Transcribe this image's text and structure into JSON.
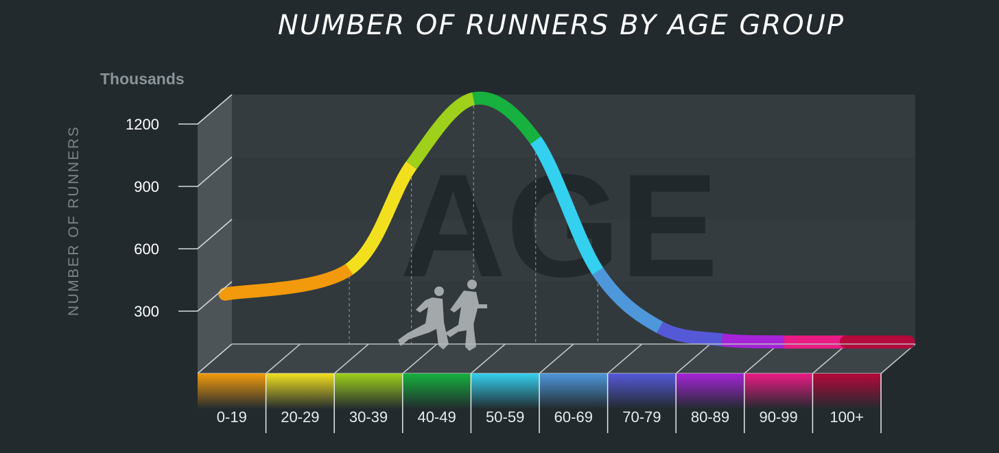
{
  "chart_data": {
    "type": "line",
    "title": "NUMBER OF RUNNERS BY AGE GROUP",
    "ylabel": "NUMBER OF RUNNERS",
    "yunits": "Thousands",
    "ylim": [
      0,
      1200
    ],
    "yticks": [
      300,
      600,
      900,
      1200
    ],
    "watermark": "AGE",
    "categories": [
      "0-19",
      "20-29",
      "30-39",
      "40-49",
      "50-59",
      "60-69",
      "70-79",
      "80-89",
      "90-99",
      "100+"
    ],
    "colors": [
      "#f29a0c",
      "#f2e01f",
      "#9fd01b",
      "#16b13e",
      "#34d0ef",
      "#4e97db",
      "#5559d8",
      "#a524d8",
      "#eb1b84",
      "#b4093a"
    ],
    "series": [
      {
        "x": [
          0,
          20,
          30,
          40,
          50,
          60,
          70,
          80,
          90,
          100,
          110
        ],
        "values": [
          240,
          360,
          860,
          1180,
          980,
          350,
          80,
          20,
          10,
          10,
          10
        ]
      }
    ],
    "grid": true,
    "legend": "none",
    "watermark_icon": "runners-icon"
  }
}
